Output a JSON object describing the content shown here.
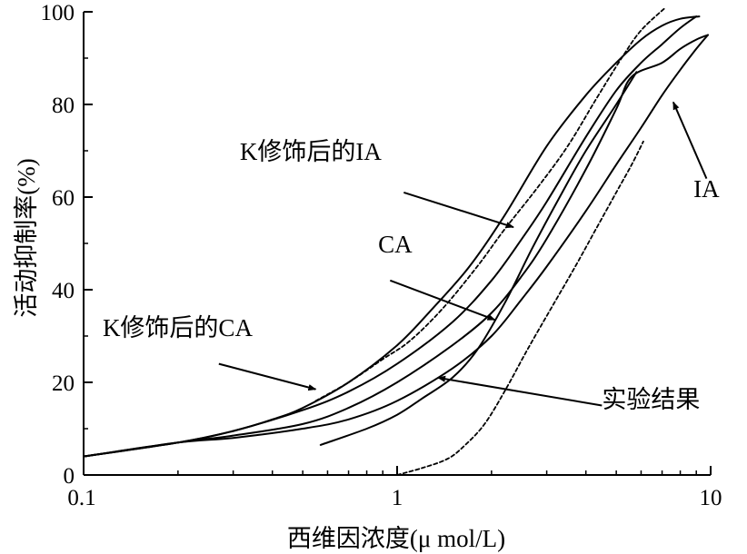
{
  "chart_data": {
    "type": "line",
    "xscale": "log",
    "xlim": [
      0.1,
      10
    ],
    "ylim": [
      0,
      100
    ],
    "xlabel": "西维因浓度(μ mol/L)",
    "ylabel": "活动抑制率(%)",
    "x_ticks": [
      0.1,
      1,
      10
    ],
    "x_tick_labels": [
      "0.1",
      "1",
      "10"
    ],
    "y_ticks": [
      0,
      20,
      40,
      60,
      80,
      100
    ],
    "y_tick_labels": [
      "0",
      "20",
      "40",
      "60",
      "80",
      "100"
    ],
    "grid": false,
    "series": [
      {
        "id": "experiment",
        "style": "solid",
        "x": [
          0.57,
          0.8,
          1.0,
          1.2,
          1.5,
          1.8,
          2.2,
          2.7,
          3.3,
          4.0,
          5.0,
          5.8
        ],
        "y": [
          6.5,
          10,
          13,
          16.5,
          21,
          27,
          37,
          49,
          60,
          70,
          80,
          87
        ]
      },
      {
        "id": "modified-IA",
        "style": "solid",
        "x": [
          0.1,
          0.2,
          0.3,
          0.4,
          0.5,
          0.7,
          1.0,
          1.3,
          1.7,
          2.2,
          3.0,
          4.0,
          5.0,
          6.0,
          7.0,
          8.0,
          9.2
        ],
        "y": [
          4,
          7,
          9.5,
          12,
          14.5,
          20,
          28,
          36,
          45,
          56,
          71,
          82,
          89,
          94,
          97,
          98.5,
          99
        ]
      },
      {
        "id": "IA",
        "style": "solid",
        "x": [
          0.1,
          0.2,
          0.3,
          0.5,
          0.7,
          1.0,
          1.5,
          2.0,
          2.5,
          3.0,
          4.0,
          5.0,
          6.0,
          7.0,
          8.0,
          9.0,
          9.8
        ],
        "y": [
          4,
          7,
          8,
          10,
          12,
          16,
          23,
          30,
          38,
          45,
          57,
          67,
          75,
          82,
          87.5,
          92,
          95
        ]
      },
      {
        "id": "CA",
        "style": "solid",
        "x": [
          0.1,
          0.2,
          0.3,
          0.5,
          0.7,
          1.0,
          1.5,
          2.0,
          2.5,
          3.0,
          4.0,
          5.0,
          5.6,
          7.0,
          8.0,
          9.0,
          9.8
        ],
        "y": [
          4,
          7,
          8.5,
          11,
          14.5,
          20,
          28,
          35,
          43,
          51,
          66,
          79,
          86,
          89,
          92,
          94,
          95
        ]
      },
      {
        "id": "modified-CA",
        "style": "solid",
        "x": [
          0.1,
          0.2,
          0.3,
          0.5,
          0.7,
          1.0,
          1.5,
          2.0,
          2.5,
          3.0,
          4.0,
          5.0,
          6.0,
          7.0,
          8.0,
          9.0
        ],
        "y": [
          4,
          7,
          9.5,
          14,
          18,
          24,
          33,
          42,
          51,
          59,
          73,
          83,
          89,
          93,
          96.5,
          99
        ]
      },
      {
        "id": "fit-upper-dashed",
        "style": "dashed",
        "x": [
          0.55,
          0.7,
          0.9,
          1.1,
          1.4,
          1.8,
          2.2,
          2.8,
          3.5,
          4.3,
          5.2,
          6.0,
          7.2
        ],
        "y": [
          16,
          20,
          25,
          29,
          36,
          45,
          53,
          62,
          71,
          81,
          90,
          96,
          101
        ]
      },
      {
        "id": "fit-lower-dashed",
        "style": "dashed",
        "x": [
          1.0,
          1.2,
          1.45,
          1.65,
          1.9,
          2.2,
          2.6,
          3.1,
          3.7,
          4.3,
          5.0,
          5.6,
          6.1
        ],
        "y": [
          0,
          1.5,
          3.5,
          6.5,
          11,
          18,
          27,
          36,
          45,
          53,
          61,
          67,
          72
        ]
      }
    ],
    "annotations": [
      {
        "text": "K修饰后的IA",
        "label_x": 0.315,
        "label_y": 68,
        "arrow_from": [
          1.05,
          61
        ],
        "arrow_to": [
          2.35,
          53.5
        ]
      },
      {
        "text": "CA",
        "label_x": 0.87,
        "label_y": 48,
        "arrow_from": [
          0.95,
          42
        ],
        "arrow_to": [
          2.05,
          33.5
        ]
      },
      {
        "text": "K修饰后的CA",
        "label_x": 0.115,
        "label_y": 30,
        "arrow_from": [
          0.27,
          24
        ],
        "arrow_to": [
          0.55,
          18.5
        ]
      },
      {
        "text": "实验结果",
        "label_x": 4.5,
        "label_y": 14.5,
        "arrow_from": [
          4.5,
          15
        ],
        "arrow_to": [
          1.35,
          21
        ]
      },
      {
        "text": "IA",
        "label_x": 9.7,
        "label_y": 60,
        "arrow_from": [
          9.7,
          64
        ],
        "arrow_to": [
          7.6,
          80.5
        ]
      }
    ]
  }
}
